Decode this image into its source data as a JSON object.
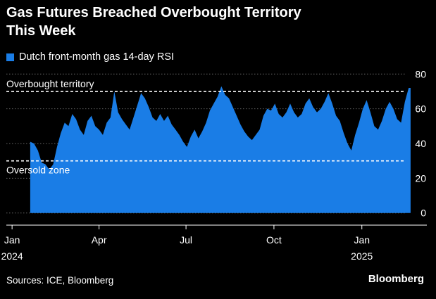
{
  "header": {
    "title_line1": "Gas Futures Breached Overbought Territory",
    "title_line2": "This Week"
  },
  "legend": {
    "label": "Dutch front-month gas 14-day RSI",
    "color": "#1a7de6"
  },
  "footer": {
    "source": "Sources: ICE, Bloomberg",
    "brand": "Bloomberg"
  },
  "colors": {
    "background": "#000000",
    "area": "#1a7de6",
    "text": "#ffffff",
    "grid": "#666666"
  },
  "chart_data": {
    "type": "area",
    "title": "Gas Futures Breached Overbought Territory This Week",
    "series_name": "Dutch front-month gas 14-day RSI",
    "ylim": [
      -7,
      87
    ],
    "yticks": [
      0,
      20,
      40,
      60,
      80
    ],
    "ytick_labels": [
      "0",
      "20",
      "40",
      "60",
      "80"
    ],
    "xlim": [
      "2023-12-26",
      "2025-03-10"
    ],
    "xticks": [
      {
        "date": "2024-01-01",
        "label1": "Jan",
        "label2": "2024"
      },
      {
        "date": "2024-04-01",
        "label1": "Apr",
        "label2": ""
      },
      {
        "date": "2024-07-01",
        "label1": "Jul",
        "label2": ""
      },
      {
        "date": "2024-10-01",
        "label1": "Oct",
        "label2": ""
      },
      {
        "date": "2025-01-01",
        "label1": "Jan",
        "label2": "2025"
      }
    ],
    "reference_lines": [
      {
        "value": 70,
        "label": "Overbought territory",
        "label_position": "above"
      },
      {
        "value": 30,
        "label": "Oversold zone",
        "label_position": "below"
      }
    ],
    "points": [
      [
        "2024-01-20",
        41
      ],
      [
        "2024-01-24",
        40
      ],
      [
        "2024-01-28",
        36
      ],
      [
        "2024-02-01",
        29
      ],
      [
        "2024-02-05",
        28
      ],
      [
        "2024-02-09",
        25
      ],
      [
        "2024-02-13",
        28
      ],
      [
        "2024-02-17",
        38
      ],
      [
        "2024-02-21",
        46
      ],
      [
        "2024-02-25",
        52
      ],
      [
        "2024-02-29",
        50
      ],
      [
        "2024-03-04",
        57
      ],
      [
        "2024-03-08",
        54
      ],
      [
        "2024-03-12",
        48
      ],
      [
        "2024-03-16",
        45
      ],
      [
        "2024-03-20",
        53
      ],
      [
        "2024-03-24",
        56
      ],
      [
        "2024-03-28",
        50
      ],
      [
        "2024-04-01",
        48
      ],
      [
        "2024-04-05",
        45
      ],
      [
        "2024-04-09",
        52
      ],
      [
        "2024-04-13",
        55
      ],
      [
        "2024-04-17",
        70
      ],
      [
        "2024-04-21",
        58
      ],
      [
        "2024-04-25",
        54
      ],
      [
        "2024-04-29",
        51
      ],
      [
        "2024-05-03",
        48
      ],
      [
        "2024-05-07",
        55
      ],
      [
        "2024-05-11",
        62
      ],
      [
        "2024-05-15",
        69
      ],
      [
        "2024-05-19",
        66
      ],
      [
        "2024-05-23",
        61
      ],
      [
        "2024-05-27",
        55
      ],
      [
        "2024-05-31",
        53
      ],
      [
        "2024-06-04",
        57
      ],
      [
        "2024-06-08",
        53
      ],
      [
        "2024-06-12",
        56
      ],
      [
        "2024-06-16",
        51
      ],
      [
        "2024-06-20",
        48
      ],
      [
        "2024-06-24",
        45
      ],
      [
        "2024-06-28",
        41
      ],
      [
        "2024-07-02",
        38
      ],
      [
        "2024-07-06",
        44
      ],
      [
        "2024-07-10",
        48
      ],
      [
        "2024-07-14",
        43
      ],
      [
        "2024-07-18",
        47
      ],
      [
        "2024-07-22",
        52
      ],
      [
        "2024-07-26",
        59
      ],
      [
        "2024-07-30",
        63
      ],
      [
        "2024-08-03",
        67
      ],
      [
        "2024-08-07",
        73
      ],
      [
        "2024-08-11",
        68
      ],
      [
        "2024-08-15",
        66
      ],
      [
        "2024-08-19",
        61
      ],
      [
        "2024-08-23",
        56
      ],
      [
        "2024-08-27",
        51
      ],
      [
        "2024-08-31",
        47
      ],
      [
        "2024-09-04",
        44
      ],
      [
        "2024-09-08",
        42
      ],
      [
        "2024-09-12",
        45
      ],
      [
        "2024-09-16",
        48
      ],
      [
        "2024-09-20",
        56
      ],
      [
        "2024-09-24",
        60
      ],
      [
        "2024-09-28",
        59
      ],
      [
        "2024-10-02",
        63
      ],
      [
        "2024-10-06",
        57
      ],
      [
        "2024-10-10",
        55
      ],
      [
        "2024-10-14",
        58
      ],
      [
        "2024-10-18",
        63
      ],
      [
        "2024-10-22",
        58
      ],
      [
        "2024-10-26",
        55
      ],
      [
        "2024-10-30",
        57
      ],
      [
        "2024-11-03",
        63
      ],
      [
        "2024-11-07",
        66
      ],
      [
        "2024-11-11",
        61
      ],
      [
        "2024-11-15",
        58
      ],
      [
        "2024-11-19",
        60
      ],
      [
        "2024-11-23",
        64
      ],
      [
        "2024-11-27",
        69
      ],
      [
        "2024-12-01",
        63
      ],
      [
        "2024-12-05",
        56
      ],
      [
        "2024-12-09",
        53
      ],
      [
        "2024-12-13",
        46
      ],
      [
        "2024-12-17",
        40
      ],
      [
        "2024-12-21",
        36
      ],
      [
        "2024-12-25",
        45
      ],
      [
        "2024-12-29",
        52
      ],
      [
        "2025-01-02",
        60
      ],
      [
        "2025-01-06",
        65
      ],
      [
        "2025-01-10",
        58
      ],
      [
        "2025-01-14",
        50
      ],
      [
        "2025-01-18",
        48
      ],
      [
        "2025-01-22",
        53
      ],
      [
        "2025-01-26",
        60
      ],
      [
        "2025-01-30",
        64
      ],
      [
        "2025-02-03",
        60
      ],
      [
        "2025-02-07",
        54
      ],
      [
        "2025-02-11",
        52
      ],
      [
        "2025-02-15",
        64
      ],
      [
        "2025-02-19",
        72
      ],
      [
        "2025-02-21",
        72
      ]
    ]
  }
}
